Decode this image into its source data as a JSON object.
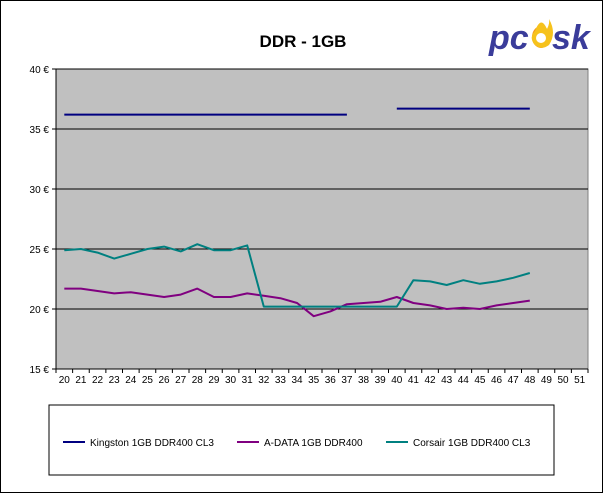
{
  "logo": {
    "text": "pcosk",
    "colors": {
      "text": "#3a3c9a",
      "flame": "#f2961e"
    }
  },
  "chart_data": {
    "type": "line",
    "title": "DDR - 1GB",
    "xlabel": "",
    "ylabel": "",
    "x": [
      20,
      21,
      22,
      23,
      24,
      25,
      26,
      27,
      28,
      29,
      30,
      31,
      32,
      33,
      34,
      35,
      36,
      37,
      38,
      39,
      40,
      41,
      42,
      43,
      44,
      45,
      46,
      47,
      48,
      49,
      50,
      51
    ],
    "ylim": [
      15,
      40
    ],
    "yticks": [
      15,
      20,
      25,
      30,
      35,
      40
    ],
    "ytick_labels": [
      "15 €",
      "20 €",
      "25 €",
      "30 €",
      "35 €",
      "40 €"
    ],
    "grid": true,
    "legend_position": "bottom",
    "plot_background": "#c0c0c0",
    "series": [
      {
        "name": "Kingston 1GB DDR400 CL3",
        "color": "#000080",
        "values": [
          36.2,
          36.2,
          36.2,
          36.2,
          36.2,
          36.2,
          36.2,
          36.2,
          36.2,
          36.2,
          36.2,
          36.2,
          36.2,
          36.2,
          36.2,
          36.2,
          36.2,
          36.2,
          null,
          null,
          36.7,
          36.7,
          36.7,
          36.7,
          36.7,
          36.7,
          36.7,
          36.7,
          36.7,
          null,
          null,
          null
        ]
      },
      {
        "name": "A-DATA 1GB DDR400",
        "color": "#800080",
        "values": [
          21.7,
          21.7,
          21.5,
          21.3,
          21.4,
          21.2,
          21.0,
          21.2,
          21.7,
          21.0,
          21.0,
          21.3,
          21.1,
          20.9,
          20.5,
          19.4,
          19.8,
          20.4,
          20.5,
          20.6,
          21.0,
          20.5,
          20.3,
          20.0,
          20.1,
          20.0,
          20.3,
          20.5,
          20.7,
          null,
          null,
          null
        ]
      },
      {
        "name": "Corsair 1GB DDR400 CL3",
        "color": "#008080",
        "values": [
          24.9,
          25.0,
          24.7,
          24.2,
          24.6,
          25.0,
          25.2,
          24.8,
          25.4,
          24.9,
          24.9,
          25.3,
          20.2,
          20.2,
          20.2,
          20.2,
          20.2,
          20.2,
          20.2,
          20.2,
          20.2,
          22.4,
          22.3,
          22.0,
          22.4,
          22.1,
          22.3,
          22.6,
          23.0,
          null,
          null,
          null
        ]
      }
    ]
  }
}
